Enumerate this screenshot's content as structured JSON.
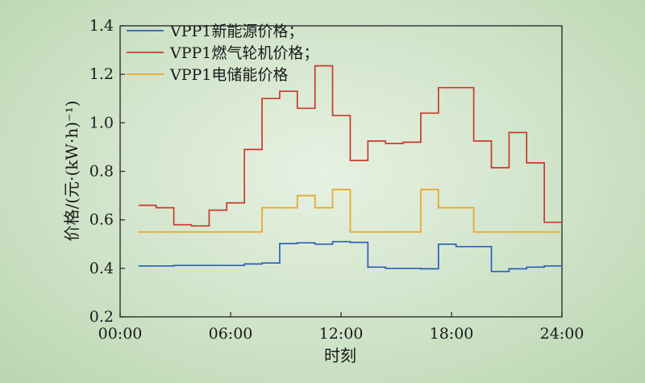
{
  "chart_data": {
    "type": "line",
    "step": true,
    "xlabel": "时刻",
    "ylabel": "价格/(元·(kW·h)⁻¹)",
    "ylim": [
      0.2,
      1.4
    ],
    "yticks": [
      "0.2",
      "0.4",
      "0.6",
      "0.8",
      "1.0",
      "1.2",
      "1.4"
    ],
    "xlim": [
      0,
      24
    ],
    "xticks": [
      "00:00",
      "06:00",
      "12:00",
      "18:00",
      "24:00"
    ],
    "grid": false,
    "legend_position": "top-left",
    "series": [
      {
        "name": "VPP1新能源价格；",
        "color": "#2b5fb8",
        "values": [
          0.41,
          0.41,
          0.412,
          0.412,
          0.412,
          0.412,
          0.418,
          0.422,
          0.502,
          0.505,
          0.5,
          0.51,
          0.507,
          0.405,
          0.4,
          0.4,
          0.398,
          0.5,
          0.49,
          0.49,
          0.387,
          0.398,
          0.405,
          0.41
        ]
      },
      {
        "name": "VPP1燃气轮机价格；",
        "color": "#c83a2a",
        "values": [
          0.66,
          0.65,
          0.58,
          0.575,
          0.64,
          0.67,
          0.89,
          1.1,
          1.13,
          1.06,
          1.235,
          1.03,
          0.845,
          0.925,
          0.915,
          0.92,
          1.04,
          1.145,
          1.145,
          0.925,
          0.815,
          0.96,
          0.835,
          0.59
        ]
      },
      {
        "name": "VPP1电储能价格",
        "color": "#e6a52a",
        "values": [
          0.55,
          0.55,
          0.55,
          0.55,
          0.55,
          0.55,
          0.55,
          0.65,
          0.65,
          0.7,
          0.65,
          0.725,
          0.55,
          0.55,
          0.55,
          0.55,
          0.725,
          0.65,
          0.65,
          0.55,
          0.55,
          0.55,
          0.55,
          0.55
        ]
      }
    ]
  }
}
